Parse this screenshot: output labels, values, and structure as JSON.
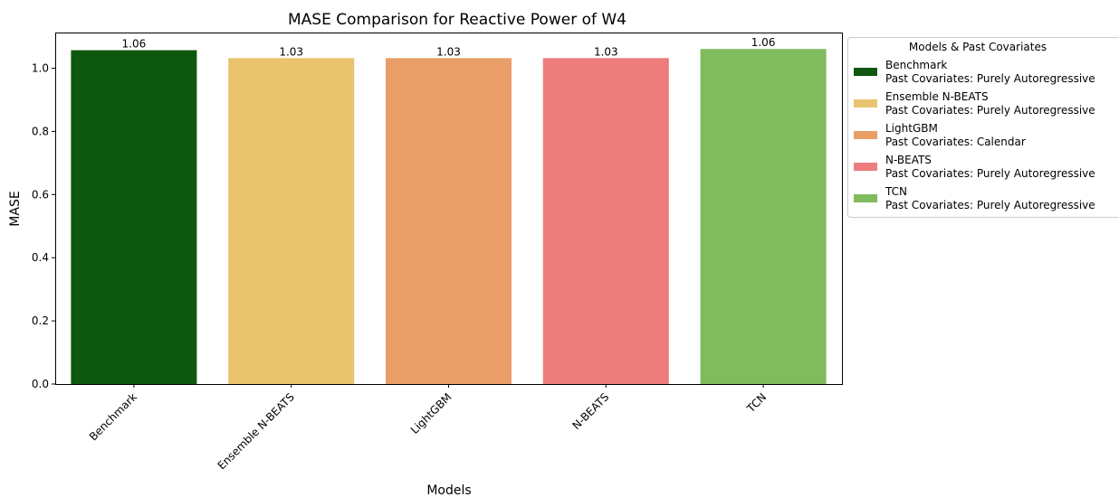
{
  "chart_data": {
    "type": "bar",
    "title": "MASE Comparison for Reactive Power of W4",
    "xlabel": "Models",
    "ylabel": "MASE",
    "ylim": [
      0,
      1.113
    ],
    "yticks": [
      0.0,
      0.2,
      0.4,
      0.6,
      0.8,
      1.0
    ],
    "ytick_labels": [
      "0.0",
      "0.2",
      "0.4",
      "0.6",
      "0.8",
      "1.0"
    ],
    "categories": [
      "Benchmark",
      "Ensemble N-BEATS",
      "LightGBM",
      "N-BEATS",
      "TCN"
    ],
    "values": [
      1.057,
      1.032,
      1.032,
      1.032,
      1.061
    ],
    "data_labels": [
      "1.06",
      "1.03",
      "1.03",
      "1.03",
      "1.06"
    ],
    "colors": [
      "#0e570e",
      "#e9c36e",
      "#e99e68",
      "#ed7d7c",
      "#80bb5e"
    ],
    "grid": false,
    "legend": {
      "title": "Models & Past Covariates",
      "placement": "outside-top-right",
      "entries": [
        {
          "model": "Benchmark",
          "covariates": "Past Covariates: Purely Autoregressive"
        },
        {
          "model": "Ensemble N-BEATS",
          "covariates": "Past Covariates: Purely Autoregressive"
        },
        {
          "model": "LightGBM",
          "covariates": "Past Covariates: Calendar"
        },
        {
          "model": "N-BEATS",
          "covariates": "Past Covariates: Purely Autoregressive"
        },
        {
          "model": "TCN",
          "covariates": "Past Covariates: Purely Autoregressive"
        }
      ]
    }
  }
}
